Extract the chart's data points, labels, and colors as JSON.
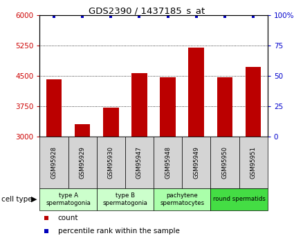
{
  "title": "GDS2390 / 1437185_s_at",
  "samples": [
    "GSM95928",
    "GSM95929",
    "GSM95930",
    "GSM95947",
    "GSM95948",
    "GSM95949",
    "GSM95950",
    "GSM95951"
  ],
  "counts": [
    4420,
    3310,
    3720,
    4580,
    4480,
    5200,
    4480,
    4720
  ],
  "percentile_ranks": [
    99,
    99,
    99,
    99,
    99,
    99,
    99,
    99
  ],
  "ylim_left": [
    3000,
    6000
  ],
  "ylim_right": [
    0,
    100
  ],
  "yticks_left": [
    3000,
    3750,
    4500,
    5250,
    6000
  ],
  "yticks_right": [
    0,
    25,
    50,
    75,
    100
  ],
  "bar_color": "#bb0000",
  "dot_color": "#0000bb",
  "bar_bottom": 3000,
  "cell_types": [
    {
      "label": "type A\nspermatogonia",
      "start": 0,
      "end": 2,
      "color": "#ccffcc"
    },
    {
      "label": "type B\nspermatogonia",
      "start": 2,
      "end": 4,
      "color": "#ccffcc"
    },
    {
      "label": "pachytene\nspermatocytes",
      "start": 4,
      "end": 6,
      "color": "#aaffaa"
    },
    {
      "label": "round spermatids",
      "start": 6,
      "end": 8,
      "color": "#44dd44"
    }
  ],
  "left_tick_color": "#cc0000",
  "right_tick_color": "#0000cc",
  "sample_box_color": "#d4d4d4",
  "background_color": "#ffffff"
}
